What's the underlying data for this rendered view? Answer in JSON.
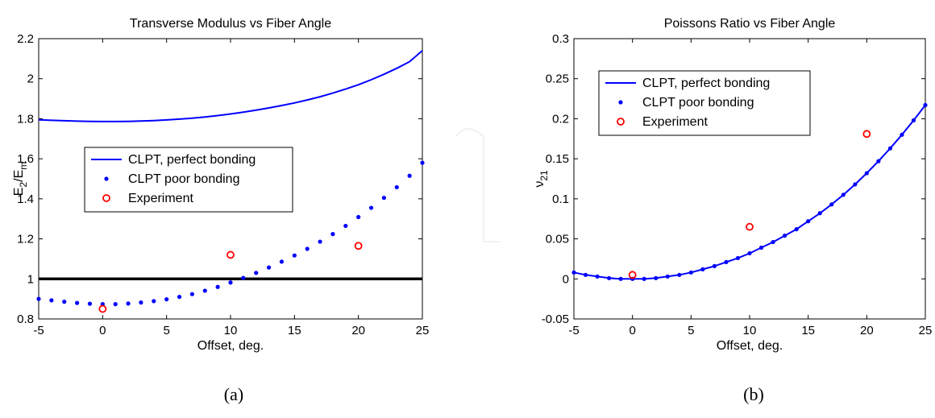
{
  "chart_data": [
    {
      "type": "line",
      "title": "Transverse Modulus vs Fiber Angle",
      "xlabel": "Offset, deg.",
      "ylabel_main": "E",
      "ylabel_sub1": "2",
      "ylabel_slash": "/E",
      "ylabel_sub2": "m",
      "caption": "(a)",
      "xlim": [
        -5,
        25
      ],
      "ylim": [
        0.8,
        2.2
      ],
      "xticks": [
        -5,
        0,
        5,
        10,
        15,
        20,
        25
      ],
      "yticks": [
        0.8,
        1.0,
        1.2,
        1.4,
        1.6,
        1.8,
        2.0,
        2.2
      ],
      "ytick_labels": [
        "0.8",
        "1",
        "1.2",
        "1.4",
        "1.6",
        "1.8",
        "2",
        "2.2"
      ],
      "grid": false,
      "legend_position": "center-left",
      "reference_line": {
        "y": 1.0,
        "color": "#000000"
      },
      "series": [
        {
          "name": "CLPT, perfect bonding",
          "style": "line",
          "color": "#0000ff",
          "x": [
            -5,
            -4,
            -3,
            -2,
            -1,
            0,
            1,
            2,
            3,
            4,
            5,
            6,
            7,
            8,
            9,
            10,
            11,
            12,
            13,
            14,
            15,
            16,
            17,
            18,
            19,
            20,
            21,
            22,
            23,
            24,
            25
          ],
          "y": [
            1.795,
            1.792,
            1.79,
            1.788,
            1.787,
            1.786,
            1.786,
            1.787,
            1.789,
            1.791,
            1.794,
            1.798,
            1.803,
            1.809,
            1.816,
            1.824,
            1.833,
            1.843,
            1.854,
            1.866,
            1.879,
            1.894,
            1.91,
            1.928,
            1.948,
            1.97,
            1.995,
            2.022,
            2.052,
            2.085,
            2.14
          ]
        },
        {
          "name": "CLPT poor bonding",
          "style": "dots",
          "color": "#0000ff",
          "x": [
            -5,
            -4,
            -3,
            -2,
            -1,
            0,
            1,
            2,
            3,
            4,
            5,
            6,
            7,
            8,
            9,
            10,
            11,
            12,
            13,
            14,
            15,
            16,
            17,
            18,
            19,
            20,
            21,
            22,
            23,
            24,
            25
          ],
          "y": [
            0.9,
            0.893,
            0.886,
            0.88,
            0.876,
            0.874,
            0.874,
            0.877,
            0.882,
            0.889,
            0.898,
            0.91,
            0.924,
            0.941,
            0.96,
            0.982,
            1.005,
            1.03,
            1.057,
            1.086,
            1.117,
            1.15,
            1.186,
            1.224,
            1.265,
            1.309,
            1.355,
            1.405,
            1.458,
            1.515,
            1.58
          ]
        },
        {
          "name": "Experiment",
          "style": "circles",
          "color": "#ff0000",
          "x": [
            0,
            10,
            20
          ],
          "y": [
            0.85,
            1.12,
            1.165
          ]
        }
      ]
    },
    {
      "type": "line",
      "title": "Poissons Ratio vs Fiber Angle",
      "xlabel": "Offset, deg.",
      "ylabel_main": "ν",
      "ylabel_sub1": "21",
      "caption": "(b)",
      "xlim": [
        -5,
        25
      ],
      "ylim": [
        -0.05,
        0.3
      ],
      "xticks": [
        -5,
        0,
        5,
        10,
        15,
        20,
        25
      ],
      "yticks": [
        -0.05,
        0,
        0.05,
        0.1,
        0.15,
        0.2,
        0.25,
        0.3
      ],
      "ytick_labels": [
        "-0.05",
        "0",
        "0.05",
        "0.1",
        "0.15",
        "0.2",
        "0.25",
        "0.3"
      ],
      "grid": false,
      "legend_position": "top-left",
      "series": [
        {
          "name": "CLPT, perfect bonding",
          "style": "line",
          "color": "#0000ff",
          "x": [
            -5,
            -4,
            -3,
            -2,
            -1,
            0,
            1,
            2,
            3,
            4,
            5,
            6,
            7,
            8,
            9,
            10,
            11,
            12,
            13,
            14,
            15,
            16,
            17,
            18,
            19,
            20,
            21,
            22,
            23,
            24,
            25
          ],
          "y": [
            0.008,
            0.005,
            0.003,
            0.001,
            0.0,
            0.0,
            0.0,
            0.001,
            0.003,
            0.005,
            0.008,
            0.012,
            0.016,
            0.021,
            0.026,
            0.032,
            0.039,
            0.046,
            0.054,
            0.062,
            0.072,
            0.082,
            0.093,
            0.105,
            0.118,
            0.132,
            0.147,
            0.163,
            0.18,
            0.198,
            0.217
          ]
        },
        {
          "name": "CLPT poor bonding",
          "style": "dots",
          "color": "#0000ff",
          "x": [
            -5,
            -4,
            -3,
            -2,
            -1,
            0,
            1,
            2,
            3,
            4,
            5,
            6,
            7,
            8,
            9,
            10,
            11,
            12,
            13,
            14,
            15,
            16,
            17,
            18,
            19,
            20,
            21,
            22,
            23,
            24,
            25
          ],
          "y": [
            0.008,
            0.005,
            0.003,
            0.001,
            0.0,
            0.0,
            0.0,
            0.001,
            0.003,
            0.005,
            0.008,
            0.012,
            0.016,
            0.021,
            0.026,
            0.032,
            0.039,
            0.046,
            0.054,
            0.062,
            0.072,
            0.082,
            0.093,
            0.105,
            0.118,
            0.132,
            0.147,
            0.163,
            0.18,
            0.198,
            0.217
          ]
        },
        {
          "name": "Experiment",
          "style": "circles",
          "color": "#ff0000",
          "x": [
            0,
            10,
            20
          ],
          "y": [
            0.005,
            0.065,
            0.181
          ]
        }
      ]
    }
  ]
}
